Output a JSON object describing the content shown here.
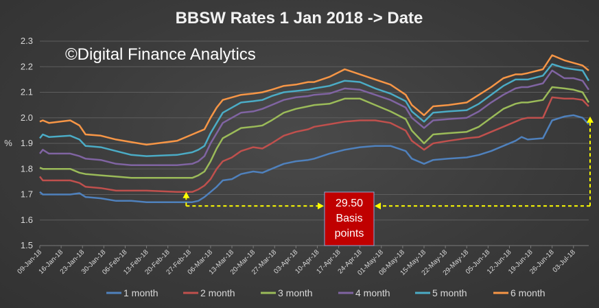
{
  "chart_data": {
    "type": "line",
    "title": "BBSW Rates 1 Jan 2018 -> Date",
    "watermark": "©Digital Finance Analytics",
    "xlabel": "",
    "ylabel": "%",
    "ylim": [
      1.5,
      2.3
    ],
    "yticks": [
      "1.5",
      "1.6",
      "1.7",
      "1.8",
      "1.9",
      "2.0",
      "2.1",
      "2.2",
      "2.3"
    ],
    "grid": true,
    "legend_position": "bottom",
    "x_range_days": [
      0,
      180
    ],
    "x_tick_labels": [
      "09-Jan-18",
      "16-Jan-18",
      "23-Jan-18",
      "30-Jan-18",
      "06-Feb-18",
      "13-Feb-18",
      "20-Feb-18",
      "27-Feb-18",
      "06-Mar-18",
      "13-Mar-18",
      "20-Mar-18",
      "27-Mar-18",
      "03-Apr-18",
      "10-Apr-18",
      "17-Apr-18",
      "24-Apr-18",
      "01-May-18",
      "08-May-18",
      "15-May-18",
      "22-May-18",
      "29-May-18",
      "05-Jun-18",
      "12-Jun-18",
      "19-Jun-18",
      "26-Jun-18",
      "03-Jul-18"
    ],
    "x_tick_days": [
      0,
      7,
      14,
      21,
      28,
      35,
      42,
      49,
      56,
      63,
      70,
      77,
      84,
      91,
      98,
      105,
      112,
      119,
      126,
      133,
      140,
      147,
      154,
      161,
      168,
      175
    ],
    "series": [
      {
        "name": "1 month",
        "color": "#4f81bd",
        "points": [
          [
            0,
            1.71
          ],
          [
            1,
            1.7
          ],
          [
            10,
            1.7
          ],
          [
            13,
            1.705
          ],
          [
            15,
            1.69
          ],
          [
            20,
            1.685
          ],
          [
            25,
            1.675
          ],
          [
            30,
            1.675
          ],
          [
            35,
            1.67
          ],
          [
            45,
            1.67
          ],
          [
            50,
            1.67
          ],
          [
            52,
            1.675
          ],
          [
            54,
            1.69
          ],
          [
            56,
            1.71
          ],
          [
            58,
            1.73
          ],
          [
            60,
            1.755
          ],
          [
            63,
            1.76
          ],
          [
            66,
            1.78
          ],
          [
            70,
            1.79
          ],
          [
            73,
            1.785
          ],
          [
            76,
            1.8
          ],
          [
            80,
            1.82
          ],
          [
            84,
            1.83
          ],
          [
            88,
            1.835
          ],
          [
            90,
            1.84
          ],
          [
            95,
            1.86
          ],
          [
            100,
            1.875
          ],
          [
            105,
            1.885
          ],
          [
            110,
            1.89
          ],
          [
            115,
            1.89
          ],
          [
            120,
            1.87
          ],
          [
            122,
            1.84
          ],
          [
            126,
            1.82
          ],
          [
            129,
            1.835
          ],
          [
            134,
            1.84
          ],
          [
            140,
            1.845
          ],
          [
            144,
            1.855
          ],
          [
            148,
            1.87
          ],
          [
            152,
            1.89
          ],
          [
            156,
            1.91
          ],
          [
            158,
            1.925
          ],
          [
            160,
            1.915
          ],
          [
            165,
            1.92
          ],
          [
            168,
            1.99
          ],
          [
            172,
            2.005
          ],
          [
            175,
            2.01
          ],
          [
            178,
            2.0
          ],
          [
            180,
            1.975
          ]
        ]
      },
      {
        "name": "2 month",
        "color": "#c0504d",
        "points": [
          [
            0,
            1.77
          ],
          [
            1,
            1.755
          ],
          [
            10,
            1.755
          ],
          [
            13,
            1.745
          ],
          [
            15,
            1.73
          ],
          [
            20,
            1.725
          ],
          [
            25,
            1.715
          ],
          [
            30,
            1.715
          ],
          [
            35,
            1.715
          ],
          [
            45,
            1.71
          ],
          [
            50,
            1.71
          ],
          [
            52,
            1.72
          ],
          [
            54,
            1.735
          ],
          [
            56,
            1.76
          ],
          [
            58,
            1.8
          ],
          [
            60,
            1.83
          ],
          [
            63,
            1.845
          ],
          [
            66,
            1.87
          ],
          [
            70,
            1.885
          ],
          [
            73,
            1.88
          ],
          [
            76,
            1.9
          ],
          [
            80,
            1.93
          ],
          [
            84,
            1.945
          ],
          [
            88,
            1.955
          ],
          [
            90,
            1.965
          ],
          [
            95,
            1.975
          ],
          [
            100,
            1.985
          ],
          [
            105,
            1.99
          ],
          [
            110,
            1.99
          ],
          [
            115,
            1.98
          ],
          [
            120,
            1.95
          ],
          [
            122,
            1.91
          ],
          [
            126,
            1.875
          ],
          [
            129,
            1.9
          ],
          [
            134,
            1.91
          ],
          [
            140,
            1.92
          ],
          [
            144,
            1.925
          ],
          [
            148,
            1.945
          ],
          [
            152,
            1.965
          ],
          [
            156,
            1.985
          ],
          [
            158,
            1.995
          ],
          [
            160,
            2.0
          ],
          [
            165,
            2.0
          ],
          [
            168,
            2.08
          ],
          [
            172,
            2.075
          ],
          [
            175,
            2.075
          ],
          [
            178,
            2.07
          ],
          [
            180,
            2.045
          ]
        ]
      },
      {
        "name": "3 month",
        "color": "#9bbb59",
        "points": [
          [
            0,
            1.805
          ],
          [
            1,
            1.8
          ],
          [
            10,
            1.8
          ],
          [
            13,
            1.785
          ],
          [
            15,
            1.78
          ],
          [
            20,
            1.775
          ],
          [
            25,
            1.77
          ],
          [
            30,
            1.765
          ],
          [
            35,
            1.765
          ],
          [
            45,
            1.765
          ],
          [
            50,
            1.765
          ],
          [
            52,
            1.775
          ],
          [
            54,
            1.79
          ],
          [
            56,
            1.83
          ],
          [
            58,
            1.88
          ],
          [
            60,
            1.92
          ],
          [
            63,
            1.94
          ],
          [
            66,
            1.96
          ],
          [
            70,
            1.965
          ],
          [
            73,
            1.97
          ],
          [
            76,
            1.99
          ],
          [
            80,
            2.02
          ],
          [
            84,
            2.035
          ],
          [
            88,
            2.045
          ],
          [
            90,
            2.05
          ],
          [
            95,
            2.055
          ],
          [
            100,
            2.075
          ],
          [
            105,
            2.075
          ],
          [
            110,
            2.05
          ],
          [
            115,
            2.025
          ],
          [
            120,
            1.995
          ],
          [
            122,
            1.95
          ],
          [
            126,
            1.9
          ],
          [
            129,
            1.935
          ],
          [
            134,
            1.94
          ],
          [
            140,
            1.945
          ],
          [
            144,
            1.965
          ],
          [
            148,
            2.0
          ],
          [
            152,
            2.035
          ],
          [
            156,
            2.055
          ],
          [
            158,
            2.06
          ],
          [
            160,
            2.06
          ],
          [
            165,
            2.07
          ],
          [
            168,
            2.12
          ],
          [
            172,
            2.115
          ],
          [
            175,
            2.11
          ],
          [
            178,
            2.1
          ],
          [
            180,
            2.06
          ]
        ]
      },
      {
        "name": "4 month",
        "color": "#8064a2",
        "points": [
          [
            0,
            1.86
          ],
          [
            1,
            1.875
          ],
          [
            3,
            1.86
          ],
          [
            10,
            1.86
          ],
          [
            13,
            1.85
          ],
          [
            15,
            1.84
          ],
          [
            20,
            1.835
          ],
          [
            25,
            1.82
          ],
          [
            30,
            1.815
          ],
          [
            35,
            1.815
          ],
          [
            45,
            1.815
          ],
          [
            50,
            1.82
          ],
          [
            52,
            1.83
          ],
          [
            54,
            1.85
          ],
          [
            56,
            1.9
          ],
          [
            58,
            1.94
          ],
          [
            60,
            1.98
          ],
          [
            63,
            2.0
          ],
          [
            66,
            2.02
          ],
          [
            70,
            2.025
          ],
          [
            73,
            2.035
          ],
          [
            76,
            2.05
          ],
          [
            80,
            2.07
          ],
          [
            84,
            2.08
          ],
          [
            88,
            2.085
          ],
          [
            90,
            2.09
          ],
          [
            95,
            2.095
          ],
          [
            100,
            2.115
          ],
          [
            105,
            2.11
          ],
          [
            110,
            2.09
          ],
          [
            115,
            2.07
          ],
          [
            120,
            2.04
          ],
          [
            122,
            2.0
          ],
          [
            126,
            1.96
          ],
          [
            129,
            1.99
          ],
          [
            134,
            1.995
          ],
          [
            140,
            2.0
          ],
          [
            144,
            2.025
          ],
          [
            148,
            2.06
          ],
          [
            152,
            2.09
          ],
          [
            156,
            2.115
          ],
          [
            158,
            2.12
          ],
          [
            160,
            2.12
          ],
          [
            165,
            2.135
          ],
          [
            168,
            2.185
          ],
          [
            172,
            2.155
          ],
          [
            175,
            2.155
          ],
          [
            178,
            2.145
          ],
          [
            180,
            2.11
          ]
        ]
      },
      {
        "name": "5 month",
        "color": "#4bacc6",
        "points": [
          [
            0,
            1.92
          ],
          [
            1,
            1.935
          ],
          [
            3,
            1.925
          ],
          [
            10,
            1.93
          ],
          [
            13,
            1.915
          ],
          [
            15,
            1.89
          ],
          [
            20,
            1.885
          ],
          [
            25,
            1.87
          ],
          [
            30,
            1.855
          ],
          [
            35,
            1.85
          ],
          [
            45,
            1.855
          ],
          [
            50,
            1.865
          ],
          [
            52,
            1.875
          ],
          [
            54,
            1.89
          ],
          [
            56,
            1.94
          ],
          [
            58,
            1.98
          ],
          [
            60,
            2.02
          ],
          [
            63,
            2.04
          ],
          [
            66,
            2.06
          ],
          [
            70,
            2.065
          ],
          [
            73,
            2.07
          ],
          [
            76,
            2.085
          ],
          [
            80,
            2.1
          ],
          [
            84,
            2.105
          ],
          [
            88,
            2.11
          ],
          [
            90,
            2.115
          ],
          [
            95,
            2.125
          ],
          [
            100,
            2.145
          ],
          [
            105,
            2.14
          ],
          [
            110,
            2.115
          ],
          [
            115,
            2.095
          ],
          [
            120,
            2.065
          ],
          [
            122,
            2.025
          ],
          [
            126,
            1.985
          ],
          [
            129,
            2.02
          ],
          [
            134,
            2.025
          ],
          [
            140,
            2.03
          ],
          [
            144,
            2.055
          ],
          [
            148,
            2.09
          ],
          [
            152,
            2.125
          ],
          [
            156,
            2.15
          ],
          [
            158,
            2.15
          ],
          [
            160,
            2.15
          ],
          [
            165,
            2.165
          ],
          [
            168,
            2.21
          ],
          [
            172,
            2.195
          ],
          [
            175,
            2.19
          ],
          [
            178,
            2.185
          ],
          [
            180,
            2.145
          ]
        ]
      },
      {
        "name": "6 month",
        "color": "#f79646",
        "points": [
          [
            0,
            1.985
          ],
          [
            1,
            1.99
          ],
          [
            3,
            1.98
          ],
          [
            10,
            1.99
          ],
          [
            13,
            1.97
          ],
          [
            15,
            1.935
          ],
          [
            20,
            1.93
          ],
          [
            25,
            1.915
          ],
          [
            30,
            1.905
          ],
          [
            35,
            1.895
          ],
          [
            45,
            1.91
          ],
          [
            50,
            1.935
          ],
          [
            52,
            1.945
          ],
          [
            54,
            1.955
          ],
          [
            56,
            2.0
          ],
          [
            58,
            2.04
          ],
          [
            60,
            2.07
          ],
          [
            63,
            2.08
          ],
          [
            66,
            2.09
          ],
          [
            70,
            2.095
          ],
          [
            73,
            2.1
          ],
          [
            76,
            2.11
          ],
          [
            80,
            2.125
          ],
          [
            84,
            2.13
          ],
          [
            88,
            2.14
          ],
          [
            90,
            2.14
          ],
          [
            95,
            2.16
          ],
          [
            100,
            2.19
          ],
          [
            105,
            2.17
          ],
          [
            110,
            2.15
          ],
          [
            115,
            2.13
          ],
          [
            120,
            2.09
          ],
          [
            122,
            2.05
          ],
          [
            126,
            2.01
          ],
          [
            129,
            2.045
          ],
          [
            134,
            2.05
          ],
          [
            140,
            2.06
          ],
          [
            144,
            2.09
          ],
          [
            148,
            2.12
          ],
          [
            152,
            2.155
          ],
          [
            156,
            2.17
          ],
          [
            158,
            2.17
          ],
          [
            160,
            2.175
          ],
          [
            165,
            2.19
          ],
          [
            168,
            2.245
          ],
          [
            172,
            2.225
          ],
          [
            175,
            2.215
          ],
          [
            178,
            2.205
          ],
          [
            180,
            2.185
          ]
        ]
      }
    ],
    "annotation": {
      "line1": "29.50",
      "line2": "Basis",
      "line3": "points",
      "low_point": {
        "day": 48,
        "value": 1.71
      },
      "high_point": {
        "day": 180,
        "value": 2.005
      },
      "bracket_value": 1.655,
      "box_color": "#c00000",
      "arrow_color": "#ffff00"
    }
  }
}
